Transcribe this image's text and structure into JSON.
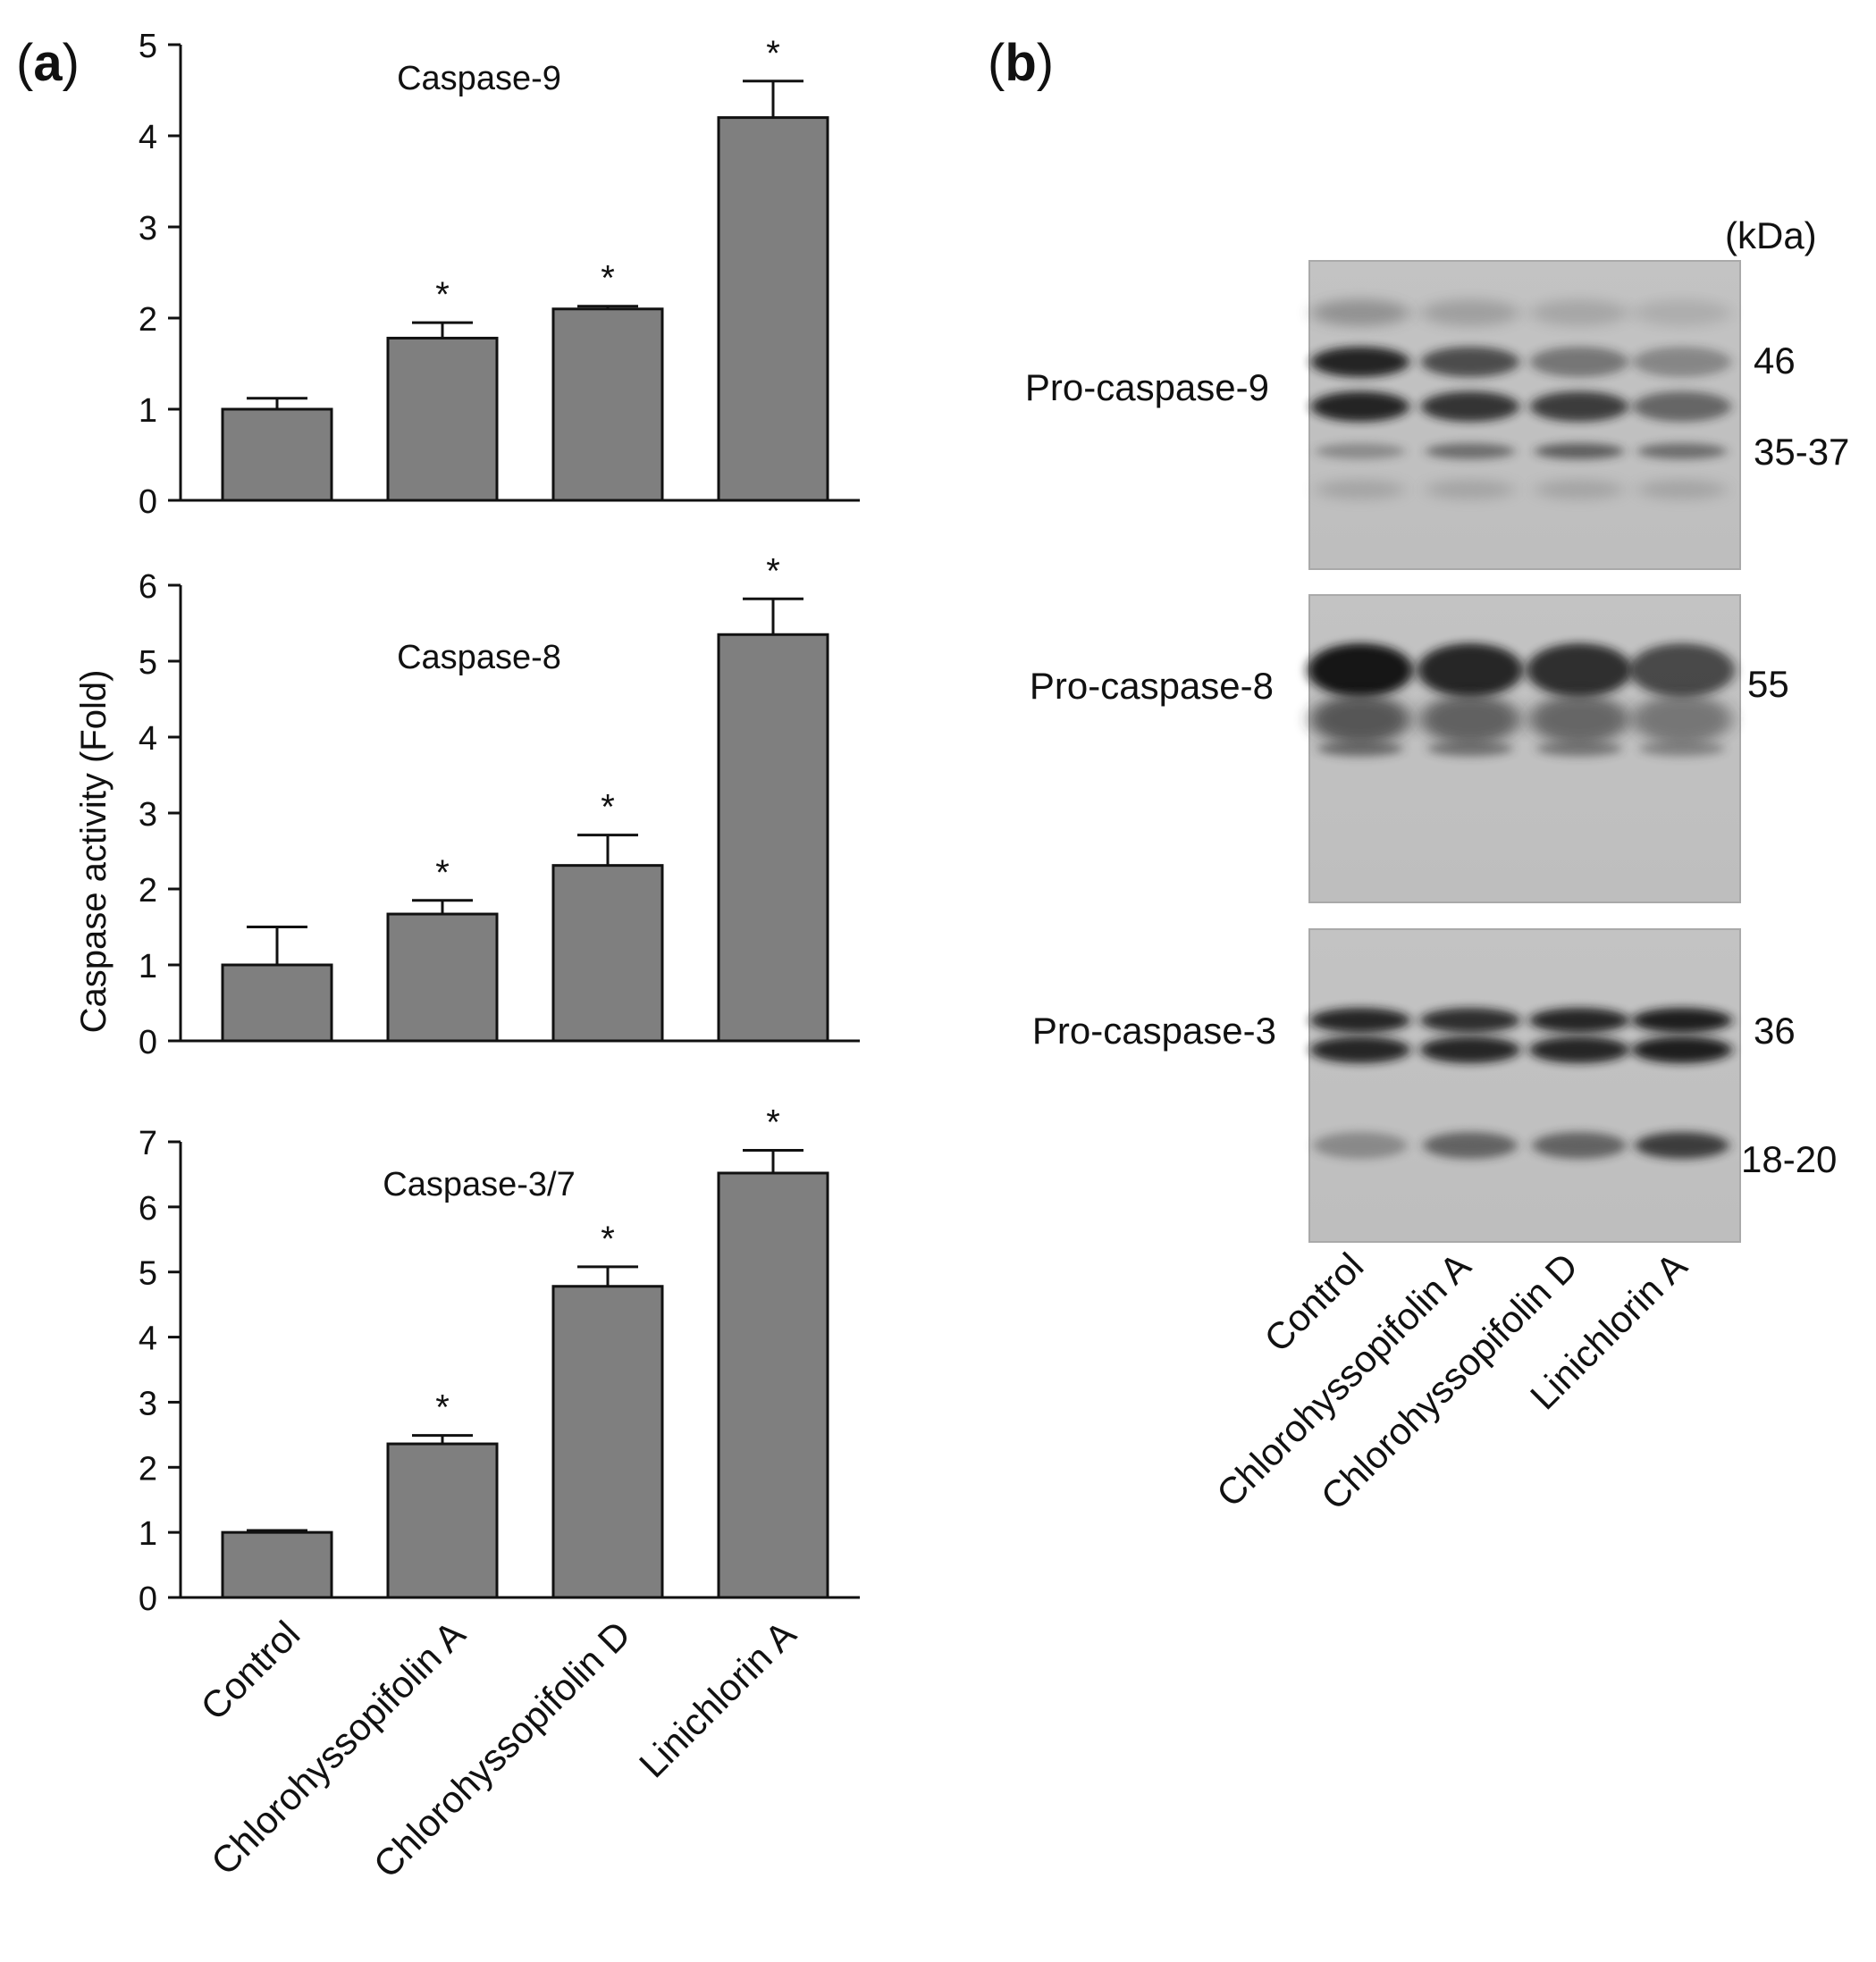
{
  "figure": {
    "panel_a_letter": "a",
    "panel_b_letter": "b",
    "ylabel": "Caspase  activity (Fold)"
  },
  "chart_data": [
    {
      "type": "bar",
      "title": "Caspase-9",
      "categories": [
        "Control",
        "Chlorohyssopifolin A",
        "Chlorohyssopifolin D",
        "Linichlorin A"
      ],
      "values": [
        1.0,
        1.78,
        2.1,
        4.2
      ],
      "errors": [
        0.12,
        0.17,
        0.03,
        0.4
      ],
      "significance": [
        "",
        "*",
        "*",
        "*"
      ],
      "ylim": [
        0,
        5
      ],
      "yticks": [
        0,
        1,
        2,
        3,
        4,
        5
      ],
      "bar_color": "#7f7f7f"
    },
    {
      "type": "bar",
      "title": "Caspase-8",
      "categories": [
        "Control",
        "Chlorohyssopifolin A",
        "Chlorohyssopifolin D",
        "Linichlorin A"
      ],
      "values": [
        1.0,
        1.67,
        2.31,
        5.35
      ],
      "errors": [
        0.5,
        0.18,
        0.4,
        0.47
      ],
      "significance": [
        "",
        "*",
        "*",
        "*"
      ],
      "ylim": [
        0,
        6
      ],
      "yticks": [
        0,
        1,
        2,
        3,
        4,
        5,
        6
      ],
      "bar_color": "#7f7f7f"
    },
    {
      "type": "bar",
      "title": "Caspase-3/7",
      "categories": [
        "Control",
        "Chlorohyssopifolin A",
        "Chlorohyssopifolin D",
        "Linichlorin A"
      ],
      "values": [
        1.0,
        2.36,
        4.78,
        6.52
      ],
      "errors": [
        0.03,
        0.13,
        0.3,
        0.35
      ],
      "significance": [
        "",
        "*",
        "*",
        "*"
      ],
      "ylim": [
        0,
        7
      ],
      "yticks": [
        0,
        1,
        2,
        3,
        4,
        5,
        6,
        7
      ],
      "bar_color": "#7f7f7f"
    }
  ],
  "blot": {
    "kda_label": "(kDa)",
    "lanes": [
      "Control",
      "Chlorohyssopifolin A",
      "Chlorohyssopifolin D",
      "Linichlorin A"
    ],
    "panels": [
      {
        "label": "Pro-caspase-9",
        "markers": [
          "46",
          "35-37"
        ]
      },
      {
        "label": "Pro-caspase-8",
        "markers": [
          "55"
        ]
      },
      {
        "label": "Pro-caspase-3",
        "markers": [
          "36",
          "18-20"
        ]
      }
    ]
  }
}
